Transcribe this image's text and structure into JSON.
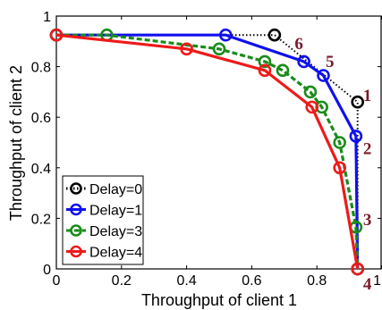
{
  "chart_data": {
    "type": "line",
    "title": "",
    "xlabel": "Throughput of client 1",
    "ylabel": "Throughput of client 2",
    "xlim": [
      0,
      1
    ],
    "ylim": [
      0,
      1
    ],
    "x_ticks": [
      "0",
      "0.2",
      "0.4",
      "0.6",
      "0.8",
      "1"
    ],
    "y_ticks": [
      "0",
      "0.2",
      "0.4",
      "0.6",
      "0.8",
      "1"
    ],
    "grid": false,
    "legend_position": "bottom-left",
    "series": [
      {
        "name": "Delay=0",
        "color": "#000000",
        "line_style": "dotted",
        "marker": "circle",
        "x": [
          0.0,
          0.67,
          0.925,
          0.925
        ],
        "y": [
          0.925,
          0.925,
          0.66,
          0.0
        ]
      },
      {
        "name": "Delay=1",
        "color": "#1010ee",
        "line_style": "solid",
        "marker": "circle",
        "x": [
          0.0,
          0.52,
          0.76,
          0.82,
          0.92,
          0.925
        ],
        "y": [
          0.925,
          0.925,
          0.82,
          0.765,
          0.525,
          0.0
        ]
      },
      {
        "name": "Delay=3",
        "color": "#1a8c1a",
        "line_style": "dashed",
        "marker": "circle",
        "x": [
          0.0,
          0.155,
          0.5,
          0.64,
          0.695,
          0.78,
          0.815,
          0.87,
          0.92,
          0.925
        ],
        "y": [
          0.925,
          0.925,
          0.87,
          0.82,
          0.785,
          0.7,
          0.64,
          0.5,
          0.165,
          0.0
        ]
      },
      {
        "name": "Delay=4",
        "color": "#ee1a1a",
        "line_style": "solid",
        "marker": "circle",
        "x": [
          0.0,
          0.4,
          0.64,
          0.785,
          0.87,
          0.925
        ],
        "y": [
          0.925,
          0.87,
          0.785,
          0.64,
          0.4,
          0.0
        ]
      }
    ],
    "annotations": [
      {
        "text": "1",
        "x": 0.955,
        "y": 0.685
      },
      {
        "text": "2",
        "x": 0.955,
        "y": 0.475
      },
      {
        "text": "3",
        "x": 0.955,
        "y": 0.195
      },
      {
        "text": "4",
        "x": 0.955,
        "y": -0.06
      },
      {
        "text": "5",
        "x": 0.84,
        "y": 0.82
      },
      {
        "text": "6",
        "x": 0.745,
        "y": 0.89
      }
    ]
  }
}
